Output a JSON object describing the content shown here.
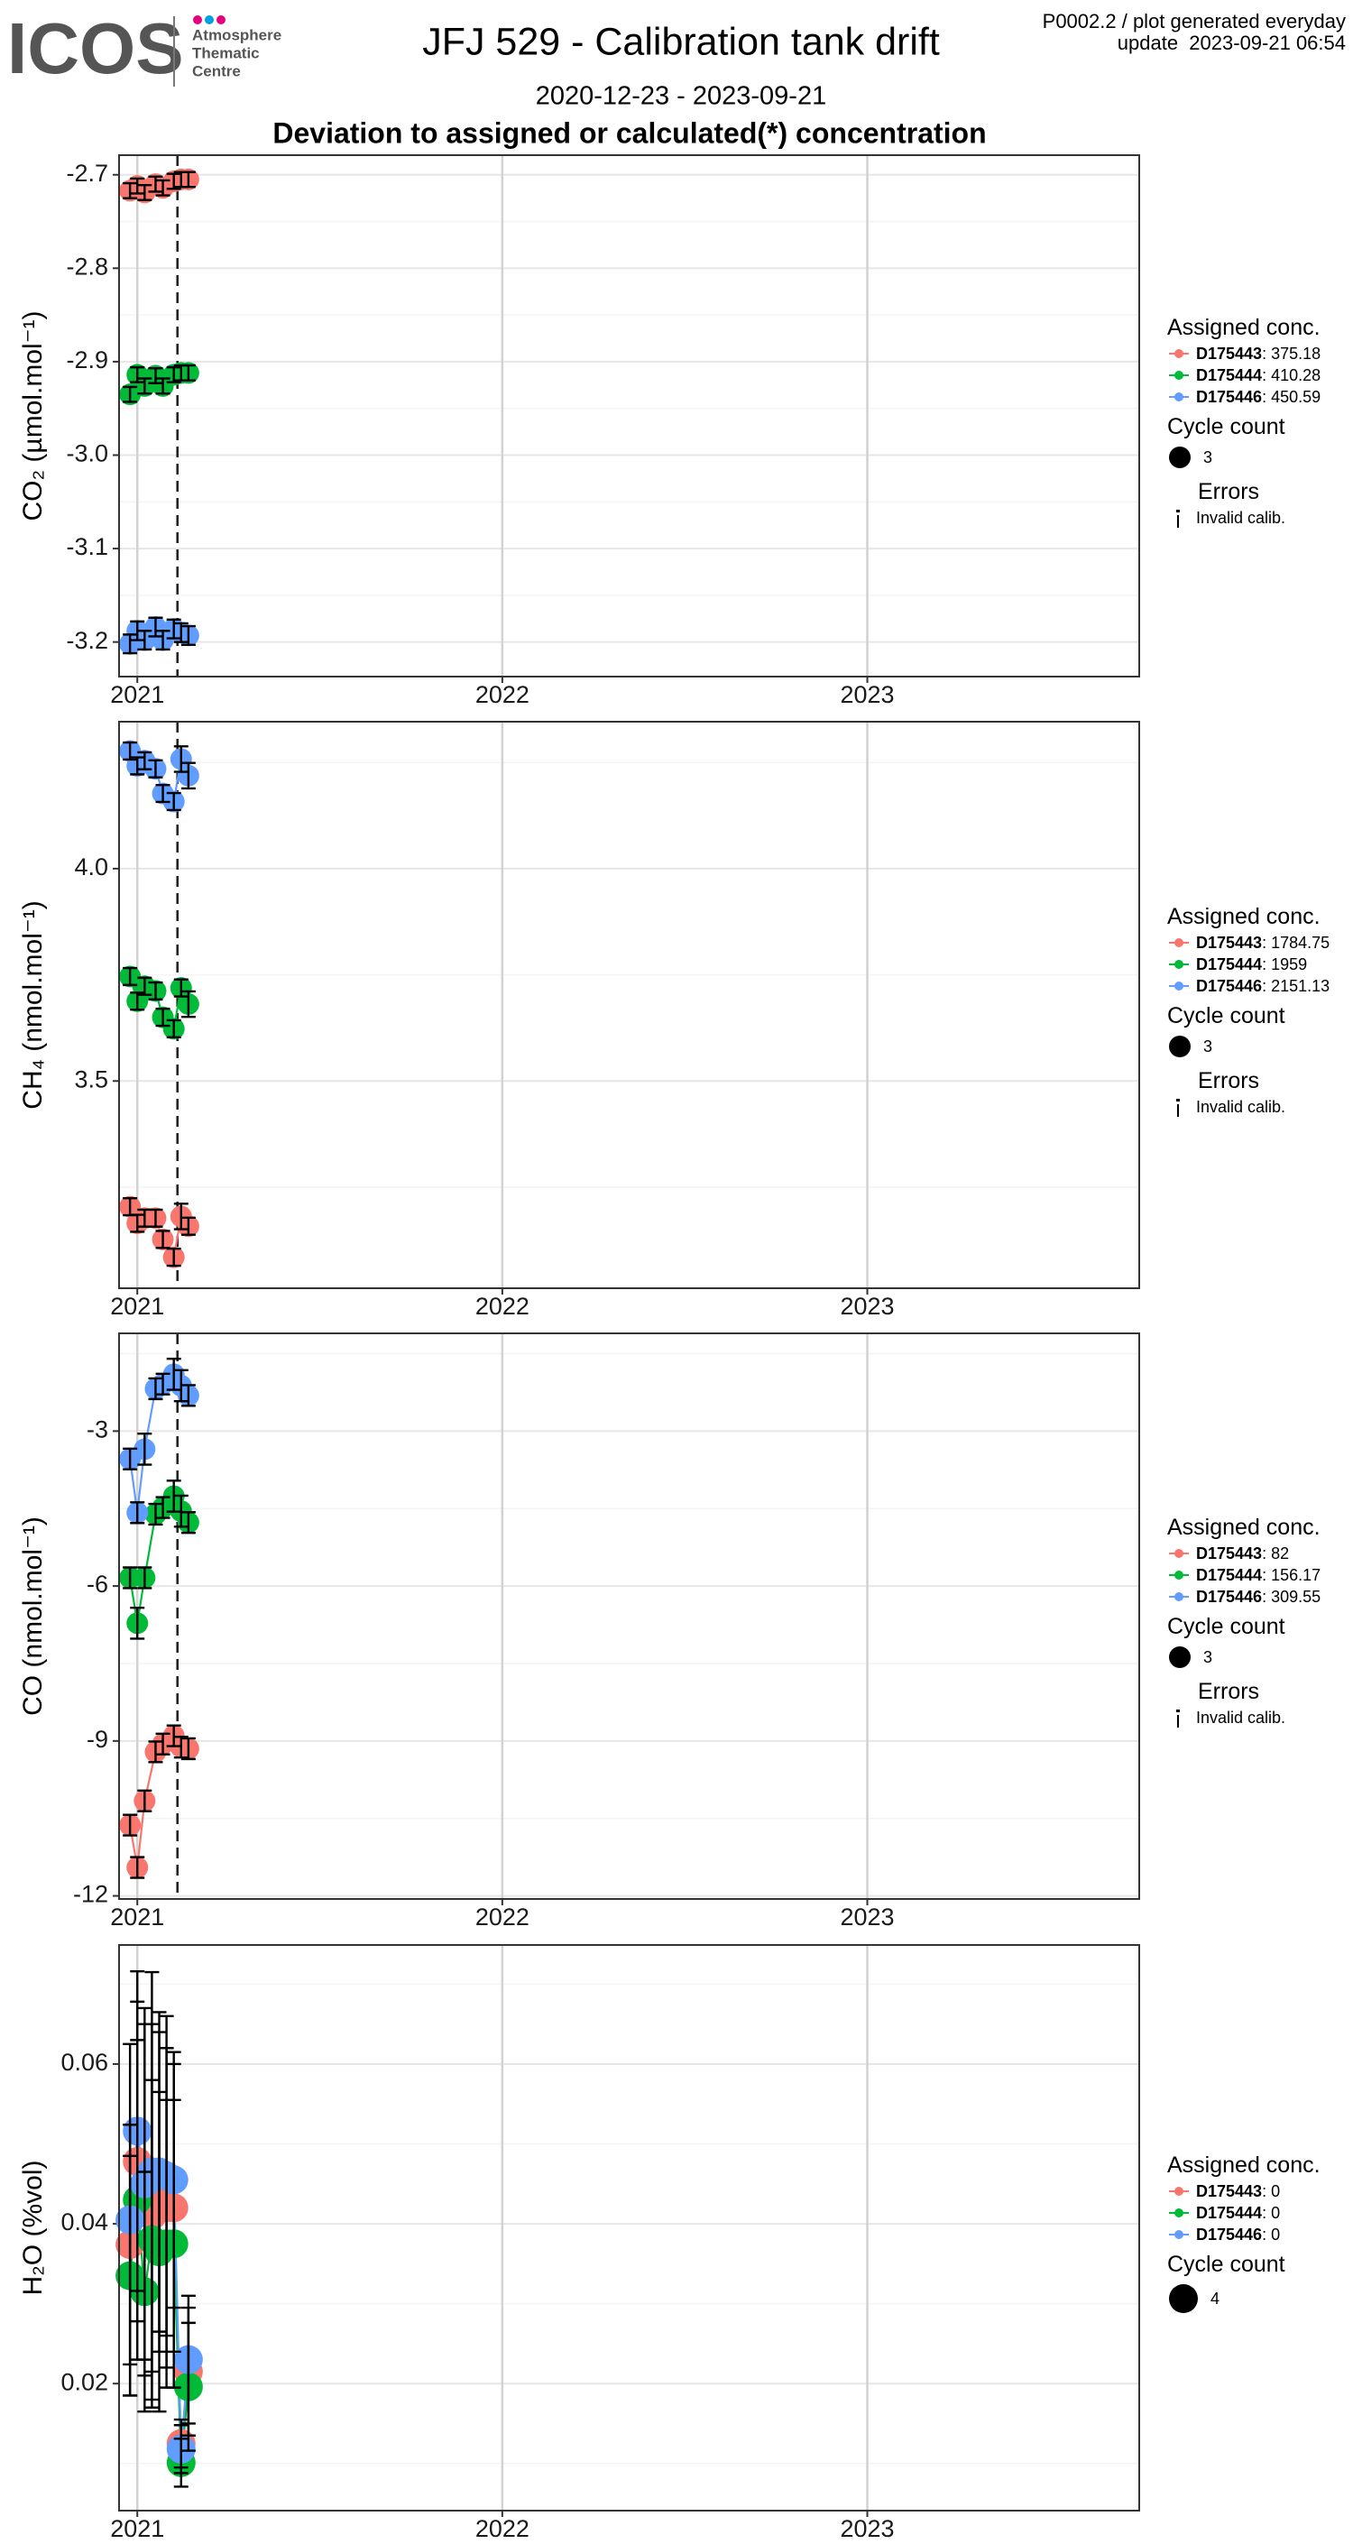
{
  "header": {
    "logo": "ICOS",
    "logo_sub": [
      "Atmosphere",
      "Thematic",
      "Centre"
    ],
    "title": "JFJ 529 - Calibration tank drift",
    "subtitle": "2020-12-23 - 2023-09-21",
    "heading": "Deviation to assigned or calculated(*) concentration",
    "info": [
      "P0002.2 / plot generated everyday",
      "update  2023-09-21 06:54"
    ]
  },
  "chart_data": [
    {
      "type": "scatter",
      "y_label": "CO₂ (µmol.mol⁻¹)",
      "x": [
        2020.98,
        2021.0,
        2021.02,
        2021.05,
        2021.07,
        2021.1,
        2021.12,
        2021.14
      ],
      "xlim": [
        2020.95,
        2023.745
      ],
      "xticks": [
        2021,
        2022,
        2023
      ],
      "ylim": [
        -3.237,
        -2.679
      ],
      "yticks": [
        -3.2,
        -3.1,
        {
          "value": -3,
          "label": "-3.0"
        },
        -2.9,
        -2.8,
        -2.7
      ],
      "grid": true,
      "vline": 2021.11,
      "legend": "right",
      "legend_title": "Assigned conc.",
      "size_title": "Cycle count",
      "cycle_count": 3,
      "errors_title": "Errors",
      "errors_entry": "Invalid calib.",
      "series": [
        {
          "name": "D175443",
          "assigned": 375.18,
          "color": "#f8766d",
          "values": [
            -2.717,
            -2.712,
            -2.719,
            -2.71,
            -2.714,
            -2.707,
            -2.705,
            -2.705
          ],
          "errors": [
            0.008,
            0.008,
            0.008,
            0.008,
            0.008,
            0.008,
            0.008,
            0.008
          ]
        },
        {
          "name": "D175444",
          "assigned": 410.28,
          "color": "#00ba38",
          "values": [
            -2.935,
            -2.914,
            -2.926,
            -2.915,
            -2.926,
            -2.914,
            -2.912,
            -2.912
          ],
          "errors": [
            0.008,
            0.008,
            0.008,
            0.008,
            0.008,
            0.008,
            0.008,
            0.008
          ]
        },
        {
          "name": "D175446",
          "assigned": 450.59,
          "color": "#619cff",
          "values": [
            -3.202,
            -3.188,
            -3.198,
            -3.184,
            -3.198,
            -3.186,
            -3.19,
            -3.193
          ],
          "errors": [
            0.01,
            0.01,
            0.01,
            0.01,
            0.01,
            0.01,
            0.01,
            0.01
          ]
        }
      ]
    },
    {
      "type": "scatter",
      "y_label": "CH₄ (nmol.mol⁻¹)",
      "x": [
        2020.98,
        2021.0,
        2021.02,
        2021.05,
        2021.07,
        2021.1,
        2021.12,
        2021.14
      ],
      "xlim": [
        2020.95,
        2023.745
      ],
      "xticks": [
        2021,
        2022,
        2023
      ],
      "ylim": [
        3.012,
        4.346
      ],
      "yticks": [
        3.5,
        {
          "value": 4,
          "label": "4.0"
        }
      ],
      "grid": true,
      "vline": 2021.11,
      "legend": "right",
      "legend_title": "Assigned conc.",
      "size_title": "Cycle count",
      "cycle_count": 3,
      "errors_title": "Errors",
      "errors_entry": "Invalid calib.",
      "series": [
        {
          "name": "D175443",
          "assigned": 1784.75,
          "color": "#f8766d",
          "values": [
            3.204,
            3.165,
            3.177,
            3.177,
            3.127,
            3.085,
            3.181,
            3.158
          ],
          "errors": [
            0.02,
            0.02,
            0.02,
            0.02,
            0.02,
            0.02,
            0.03,
            0.02
          ]
        },
        {
          "name": "D175444",
          "assigned": 1959,
          "color": "#00ba38",
          "values": [
            3.746,
            3.688,
            3.723,
            3.712,
            3.65,
            3.623,
            3.719,
            3.681
          ],
          "errors": [
            0.02,
            0.02,
            0.02,
            0.02,
            0.02,
            0.02,
            0.02,
            0.03
          ]
        },
        {
          "name": "D175446",
          "assigned": 2151.13,
          "color": "#619cff",
          "values": [
            4.277,
            4.242,
            4.254,
            4.235,
            4.177,
            4.158,
            4.258,
            4.219
          ],
          "errors": [
            0.02,
            0.02,
            0.02,
            0.02,
            0.02,
            0.02,
            0.03,
            0.03
          ]
        }
      ]
    },
    {
      "type": "scatter",
      "y_label": "CO (nmol.mol⁻¹)",
      "x": [
        2020.98,
        2021.0,
        2021.02,
        2021.05,
        2021.07,
        2021.1,
        2021.12,
        2021.14
      ],
      "xlim": [
        2020.95,
        2023.745
      ],
      "xticks": [
        2021,
        2022,
        2023
      ],
      "ylim": [
        -12.06,
        -1.107
      ],
      "yticks": [
        -12,
        -9,
        -6,
        -3
      ],
      "grid": true,
      "vline": 2021.11,
      "legend": "right",
      "legend_title": "Assigned conc.",
      "size_title": "Cycle count",
      "cycle_count": 3,
      "errors_title": "Errors",
      "errors_entry": "Invalid calib.",
      "series": [
        {
          "name": "D175443",
          "assigned": 82,
          "color": "#f8766d",
          "values": [
            -10.63,
            -11.45,
            -10.16,
            -9.21,
            -9.06,
            -8.9,
            -9.12,
            -9.15
          ],
          "errors": [
            0.2,
            0.2,
            0.2,
            0.2,
            0.2,
            0.2,
            0.2,
            0.2
          ]
        },
        {
          "name": "D175444",
          "assigned": 156.17,
          "color": "#00ba38",
          "values": [
            -5.84,
            -6.72,
            -5.84,
            -4.61,
            -4.48,
            -4.26,
            -4.55,
            -4.77
          ],
          "errors": [
            0.2,
            0.3,
            0.2,
            0.2,
            0.2,
            0.3,
            0.3,
            0.2
          ]
        },
        {
          "name": "D175446",
          "assigned": 309.55,
          "color": "#619cff",
          "values": [
            -3.54,
            -4.58,
            -3.35,
            -2.18,
            -2.09,
            -1.9,
            -2.12,
            -2.31
          ],
          "errors": [
            0.2,
            0.2,
            0.3,
            0.2,
            0.2,
            0.3,
            0.3,
            0.2
          ]
        }
      ]
    },
    {
      "type": "scatter",
      "y_label": "H₂O (%vol)",
      "x": [
        2020.98,
        2021.0,
        2021.02,
        2021.04,
        2021.06,
        2021.08,
        2021.1,
        2021.12,
        2021.14
      ],
      "xlim": [
        2020.95,
        2023.745
      ],
      "xticks": [
        2021,
        2022,
        2023
      ],
      "ylim": [
        0.0041,
        0.0749
      ],
      "yticks": [
        0.02,
        0.04,
        0.06
      ],
      "grid": true,
      "legend": "right",
      "legend_title": "Assigned conc.",
      "size_title": "Cycle count",
      "cycle_count": 4,
      "series": [
        {
          "name": "D175443",
          "assigned": 0,
          "color": "#f8766d",
          "values": [
            0.0374,
            0.0478,
            0.043,
            0.041,
            0.044,
            0.042,
            0.042,
            0.0125,
            0.0215
          ],
          "errors": [
            0.015,
            0.02,
            0.022,
            0.024,
            0.02,
            0.02,
            0.018,
            0.003,
            0.008
          ]
        },
        {
          "name": "D175444",
          "assigned": 0,
          "color": "#00ba38",
          "values": [
            0.0335,
            0.043,
            0.0315,
            0.038,
            0.0365,
            0.0375,
            0.0375,
            0.0101,
            0.0196
          ],
          "errors": [
            0.015,
            0.02,
            0.015,
            0.02,
            0.02,
            0.018,
            0.018,
            0.003,
            0.008
          ]
        },
        {
          "name": "D175446",
          "assigned": 0,
          "color": "#619cff",
          "values": [
            0.0405,
            0.0516,
            0.045,
            0.0465,
            0.0465,
            0.046,
            0.0455,
            0.0118,
            0.023
          ],
          "errors": [
            0.022,
            0.02,
            0.022,
            0.025,
            0.02,
            0.02,
            0.016,
            0.003,
            0.008
          ]
        }
      ]
    }
  ]
}
